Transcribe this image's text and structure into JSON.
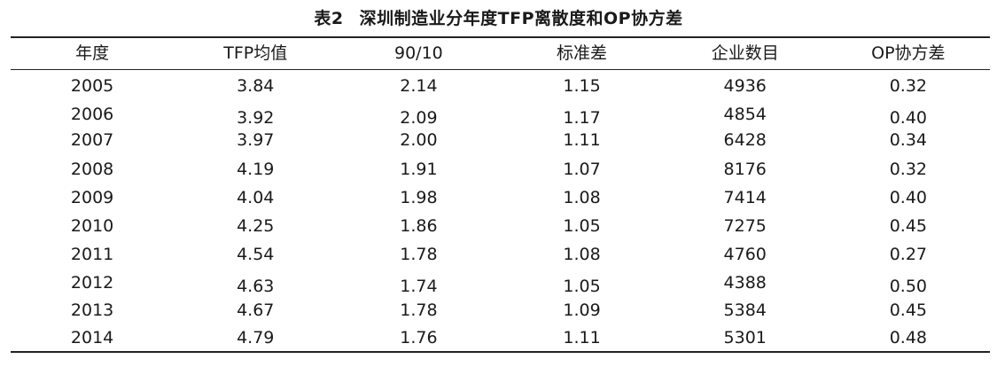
{
  "caption": {
    "number": "表2",
    "title": "深圳制造业分年度TFP离散度和OP协方差"
  },
  "table": {
    "columns": [
      "年度",
      "TFP均值",
      "90/10",
      "标准差",
      "企业数目",
      "OP协方差"
    ],
    "rows": [
      {
        "year": "2005",
        "tfp_mean": "3.84",
        "ratio_90_10": "2.14",
        "std_dev": "1.15",
        "firms": "4936",
        "op_cov": "0.32"
      },
      {
        "year": "2006",
        "tfp_mean": "3.92",
        "ratio_90_10": "2.09",
        "std_dev": "1.17",
        "firms": "4854",
        "op_cov": "0.40"
      },
      {
        "year": "2007",
        "tfp_mean": "3.97",
        "ratio_90_10": "2.00",
        "std_dev": "1.11",
        "firms": "6428",
        "op_cov": "0.34"
      },
      {
        "year": "2008",
        "tfp_mean": "4.19",
        "ratio_90_10": "1.91",
        "std_dev": "1.07",
        "firms": "8176",
        "op_cov": "0.32"
      },
      {
        "year": "2009",
        "tfp_mean": "4.04",
        "ratio_90_10": "1.98",
        "std_dev": "1.08",
        "firms": "7414",
        "op_cov": "0.40"
      },
      {
        "year": "2010",
        "tfp_mean": "4.25",
        "ratio_90_10": "1.86",
        "std_dev": "1.05",
        "firms": "7275",
        "op_cov": "0.45"
      },
      {
        "year": "2011",
        "tfp_mean": "4.54",
        "ratio_90_10": "1.78",
        "std_dev": "1.08",
        "firms": "4760",
        "op_cov": "0.27"
      },
      {
        "year": "2012",
        "tfp_mean": "4.63",
        "ratio_90_10": "1.74",
        "std_dev": "1.05",
        "firms": "4388",
        "op_cov": "0.50"
      },
      {
        "year": "2013",
        "tfp_mean": "4.67",
        "ratio_90_10": "1.78",
        "std_dev": "1.09",
        "firms": "5384",
        "op_cov": "0.45"
      },
      {
        "year": "2014",
        "tfp_mean": "4.79",
        "ratio_90_10": "1.76",
        "std_dev": "1.11",
        "firms": "5301",
        "op_cov": "0.48"
      }
    ]
  }
}
